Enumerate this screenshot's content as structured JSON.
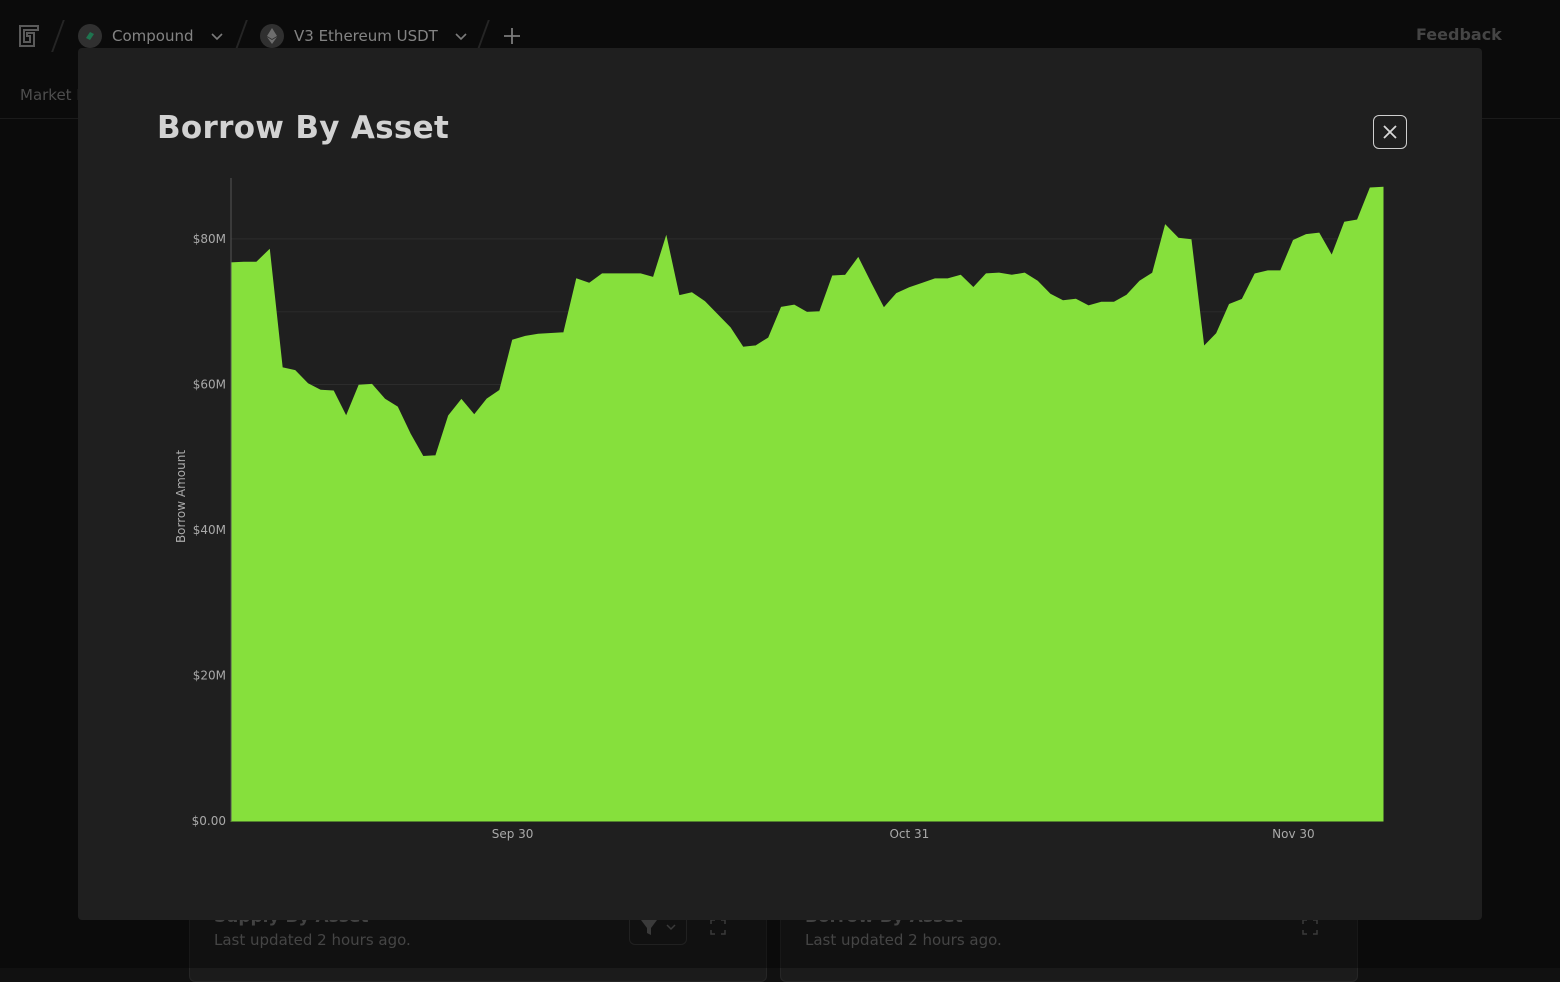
{
  "topbar": {
    "protocol": {
      "label": "Compound",
      "icon": "compound-logo-icon"
    },
    "market": {
      "label": "V3 Ethereum USDT",
      "icon": "ethereum-icon"
    },
    "feedback_label": "Feedback"
  },
  "subnav": {
    "label": "Market H"
  },
  "cards": [
    {
      "title": "Supply By Asset",
      "updated": "Last updated 2 hours ago."
    },
    {
      "title": "Borrow By Asset",
      "updated": "Last updated 2 hours ago."
    }
  ],
  "modal": {
    "title": "Borrow By Asset",
    "close_icon": "close-icon"
  },
  "colors": {
    "area_fill": "#86e03c",
    "background": "#111111",
    "modal_bg": "#1f1f1f"
  },
  "chart_data": {
    "type": "area",
    "ylabel": "Borrow Amount",
    "yticks": [
      "$0.00",
      "$20M",
      "$40M",
      "$60M",
      "$80M"
    ],
    "ylim": [
      0,
      87
    ],
    "xticks": [
      {
        "label": "Sep 30",
        "date": "2023-09-30"
      },
      {
        "label": "Oct 31",
        "date": "2023-10-31"
      },
      {
        "label": "Nov 30",
        "date": "2023-11-30"
      }
    ],
    "xlim": [
      "2023-09-08",
      "2023-12-07"
    ],
    "grid": "horizontal",
    "series": [
      {
        "unit": "$M",
        "x": [
          "2023-09-08",
          "2023-09-09",
          "2023-09-10",
          "2023-09-11",
          "2023-09-12",
          "2023-09-13",
          "2023-09-14",
          "2023-09-15",
          "2023-09-16",
          "2023-09-17",
          "2023-09-18",
          "2023-09-19",
          "2023-09-20",
          "2023-09-21",
          "2023-09-22",
          "2023-09-23",
          "2023-09-24",
          "2023-09-25",
          "2023-09-26",
          "2023-09-27",
          "2023-09-28",
          "2023-09-29",
          "2023-09-30",
          "2023-10-01",
          "2023-10-02",
          "2023-10-03",
          "2023-10-04",
          "2023-10-05",
          "2023-10-06",
          "2023-10-07",
          "2023-10-08",
          "2023-10-09",
          "2023-10-10",
          "2023-10-11",
          "2023-10-12",
          "2023-10-13",
          "2023-10-14",
          "2023-10-15",
          "2023-10-16",
          "2023-10-17",
          "2023-10-18",
          "2023-10-19",
          "2023-10-20",
          "2023-10-21",
          "2023-10-22",
          "2023-10-23",
          "2023-10-24",
          "2023-10-25",
          "2023-10-26",
          "2023-10-27",
          "2023-10-28",
          "2023-10-29",
          "2023-10-30",
          "2023-10-31",
          "2023-11-01",
          "2023-11-02",
          "2023-11-03",
          "2023-11-04",
          "2023-11-05",
          "2023-11-06",
          "2023-11-07",
          "2023-11-08",
          "2023-11-09",
          "2023-11-10",
          "2023-11-11",
          "2023-11-12",
          "2023-11-13",
          "2023-11-14",
          "2023-11-15",
          "2023-11-16",
          "2023-11-17",
          "2023-11-18",
          "2023-11-19",
          "2023-11-20",
          "2023-11-21",
          "2023-11-22",
          "2023-11-23",
          "2023-11-24",
          "2023-11-25",
          "2023-11-26",
          "2023-11-27",
          "2023-11-28",
          "2023-11-29",
          "2023-11-30",
          "2023-12-01",
          "2023-12-02",
          "2023-12-03",
          "2023-12-04",
          "2023-12-05",
          "2023-12-06",
          "2023-12-07"
        ],
        "values": [
          76.7,
          76.8,
          76.8,
          78.5,
          62.3,
          61.9,
          60.1,
          59.2,
          59.1,
          55.6,
          59.9,
          60.0,
          58.0,
          56.9,
          53.2,
          50.1,
          50.2,
          55.7,
          57.9,
          55.8,
          58.0,
          59.2,
          66.1,
          66.6,
          66.9,
          67.0,
          67.1,
          74.5,
          73.9,
          75.2,
          75.2,
          75.2,
          75.2,
          74.7,
          80.3,
          72.2,
          72.6,
          71.4,
          69.6,
          67.8,
          65.1,
          65.3,
          66.4,
          70.6,
          70.9,
          69.9,
          70.0,
          74.9,
          75.0,
          77.4,
          73.9,
          70.5,
          72.5,
          73.3,
          73.9,
          74.5,
          74.5,
          75.0,
          73.3,
          75.2,
          75.3,
          75.0,
          75.3,
          74.2,
          72.4,
          71.5,
          71.7,
          70.8,
          71.3,
          71.3,
          72.3,
          74.2,
          75.3,
          81.9,
          80.1,
          79.9,
          65.2,
          67.0,
          71.0,
          71.7,
          75.2,
          75.6,
          75.6,
          79.8,
          80.6,
          80.8,
          77.7,
          82.3,
          82.6,
          87.0,
          87.1
        ]
      }
    ]
  }
}
